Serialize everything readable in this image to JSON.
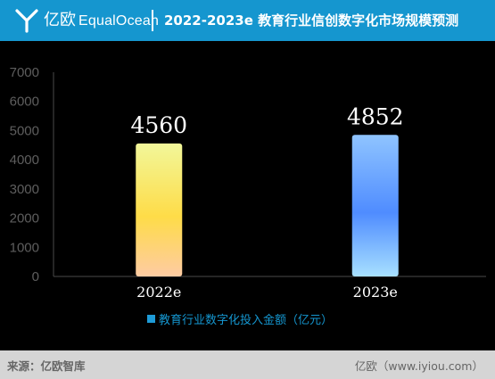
{
  "header": {
    "brand_cn": "亿欧",
    "brand_en": "EqualOcean",
    "title": "2022-2023e 教育行业信创数字化市场规模预测"
  },
  "chart_data": {
    "type": "bar",
    "categories": [
      "2022e",
      "2023e"
    ],
    "series": [
      {
        "name": "教育行业数字化投入金额（亿元）",
        "values": [
          4560,
          4852
        ]
      }
    ],
    "data_labels": [
      "4560",
      "4852"
    ],
    "yticks": [
      "0",
      "1000",
      "2000",
      "3000",
      "4000",
      "5000",
      "6000",
      "7000"
    ],
    "ylim": [
      0,
      7000
    ],
    "grid": false,
    "legend_position": "bottom",
    "bar_colors": [
      [
        "#f2f79a",
        "#fedc48",
        "#fecba3"
      ],
      [
        "#8fc4ff",
        "#4f8cff",
        "#a8e0ff"
      ]
    ]
  },
  "legend": {
    "label": "教育行业数字化投入金额（亿元）",
    "color": "#1e9bd7"
  },
  "footer": {
    "source": "来源：亿欧智库",
    "site": "亿欧（www.iyiou.com）"
  },
  "colors": {
    "header": "#1596cf",
    "background": "#000000",
    "footer": "#d5d5d5",
    "axis": "#4a4a4a",
    "tick_text": "#5e5e5e"
  }
}
